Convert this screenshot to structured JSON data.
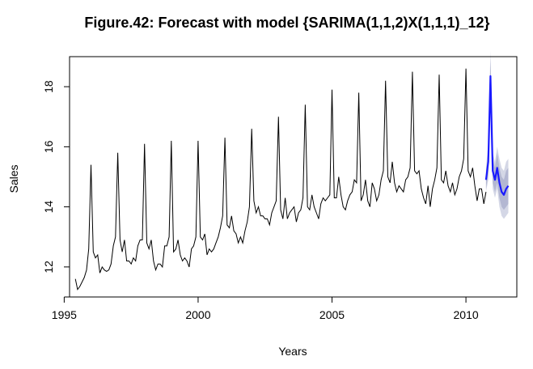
{
  "chart_data": {
    "type": "line",
    "title": "Figure.42: Forecast with model {SARIMA(1,1,2)X(1,1,1)_12}",
    "xlabel": "Years",
    "ylabel": "Sales",
    "xlim": [
      1995.2,
      2011.9
    ],
    "ylim": [
      11.0,
      19.0
    ],
    "x_ticks": [
      1995,
      2000,
      2005,
      2010
    ],
    "y_ticks": [
      12,
      14,
      16,
      18
    ],
    "grid": false,
    "legend": "none",
    "colors": {
      "observed": "#000000",
      "forecast": "#1a1aff",
      "band_outer": "#d4d7e6",
      "band_inner": "#b3b7d2"
    },
    "series": [
      {
        "start": 1995.4167,
        "frequency": 12,
        "values": [
          11.6,
          11.25,
          11.35,
          11.5,
          11.65,
          11.9,
          12.6,
          15.4,
          12.5,
          12.3,
          12.4,
          11.8,
          12.0,
          11.9,
          11.85,
          11.9,
          12.1,
          12.7,
          13.0,
          15.8,
          12.9,
          12.5,
          12.9,
          12.2,
          12.2,
          12.1,
          12.3,
          12.2,
          12.7,
          12.9,
          12.9,
          16.1,
          12.8,
          12.6,
          12.9,
          12.2,
          11.9,
          12.1,
          12.1,
          12.0,
          12.7,
          12.7,
          13.0,
          16.2,
          12.5,
          12.6,
          12.9,
          12.4,
          12.2,
          12.3,
          12.2,
          12.0,
          12.6,
          12.7,
          13.0,
          16.2,
          13.0,
          12.9,
          13.1,
          12.4,
          12.6,
          12.5,
          12.6,
          12.8,
          13.0,
          13.3,
          13.7,
          16.3,
          13.4,
          13.3,
          13.7,
          13.2,
          13.1,
          12.8,
          13.0,
          12.8,
          13.2,
          13.5,
          14.0,
          16.6,
          14.2,
          13.8,
          14.0,
          13.7,
          13.7,
          13.6,
          13.6,
          13.4,
          13.8,
          14.0,
          14.2,
          17.0,
          13.9,
          13.6,
          14.3,
          13.6,
          13.8,
          13.9,
          14.0,
          13.5,
          13.8,
          13.9,
          14.3,
          17.4,
          14.0,
          13.9,
          14.4,
          14.0,
          13.8,
          13.6,
          14.1,
          14.3,
          14.2,
          14.3,
          14.4,
          17.9,
          14.3,
          14.3,
          15.0,
          14.4,
          14.0,
          13.9,
          14.2,
          14.4,
          14.5,
          14.9,
          14.8,
          17.8,
          14.2,
          14.4,
          14.9,
          14.2,
          14.0,
          14.8,
          14.6,
          14.2,
          14.4,
          14.9,
          15.2,
          18.2,
          15.0,
          14.8,
          15.5,
          14.8,
          14.5,
          14.7,
          14.6,
          14.5,
          14.9,
          15.0,
          15.3,
          18.5,
          15.2,
          15.1,
          15.2,
          14.6,
          14.3,
          14.1,
          14.7,
          14.0,
          14.6,
          14.9,
          15.3,
          18.4,
          14.9,
          14.8,
          15.2,
          14.7,
          14.5,
          14.8,
          14.4,
          14.6,
          15.0,
          15.2,
          15.6,
          18.6,
          15.2,
          15.0,
          15.3,
          14.7,
          14.2,
          14.6,
          14.6,
          14.1,
          14.5
        ]
      },
      {
        "start": 2010.75,
        "frequency": 12,
        "values": [
          14.9,
          15.5,
          18.35,
          15.2,
          14.9,
          15.3,
          14.8,
          14.5,
          14.4,
          14.6,
          14.7
        ],
        "lower80": [
          14.6,
          15.1,
          17.8,
          14.8,
          14.5,
          14.8,
          14.3,
          14.0,
          13.9,
          14.0,
          14.1
        ],
        "upper80": [
          15.2,
          15.9,
          18.9,
          15.6,
          15.3,
          15.8,
          15.3,
          15.0,
          14.9,
          15.2,
          15.3
        ],
        "lower95": [
          14.5,
          14.9,
          17.5,
          14.6,
          14.3,
          14.6,
          14.0,
          13.7,
          13.6,
          13.7,
          13.8
        ],
        "upper95": [
          15.3,
          16.1,
          19.2,
          15.8,
          15.5,
          16.0,
          15.6,
          15.3,
          15.2,
          15.5,
          15.6
        ]
      }
    ]
  }
}
